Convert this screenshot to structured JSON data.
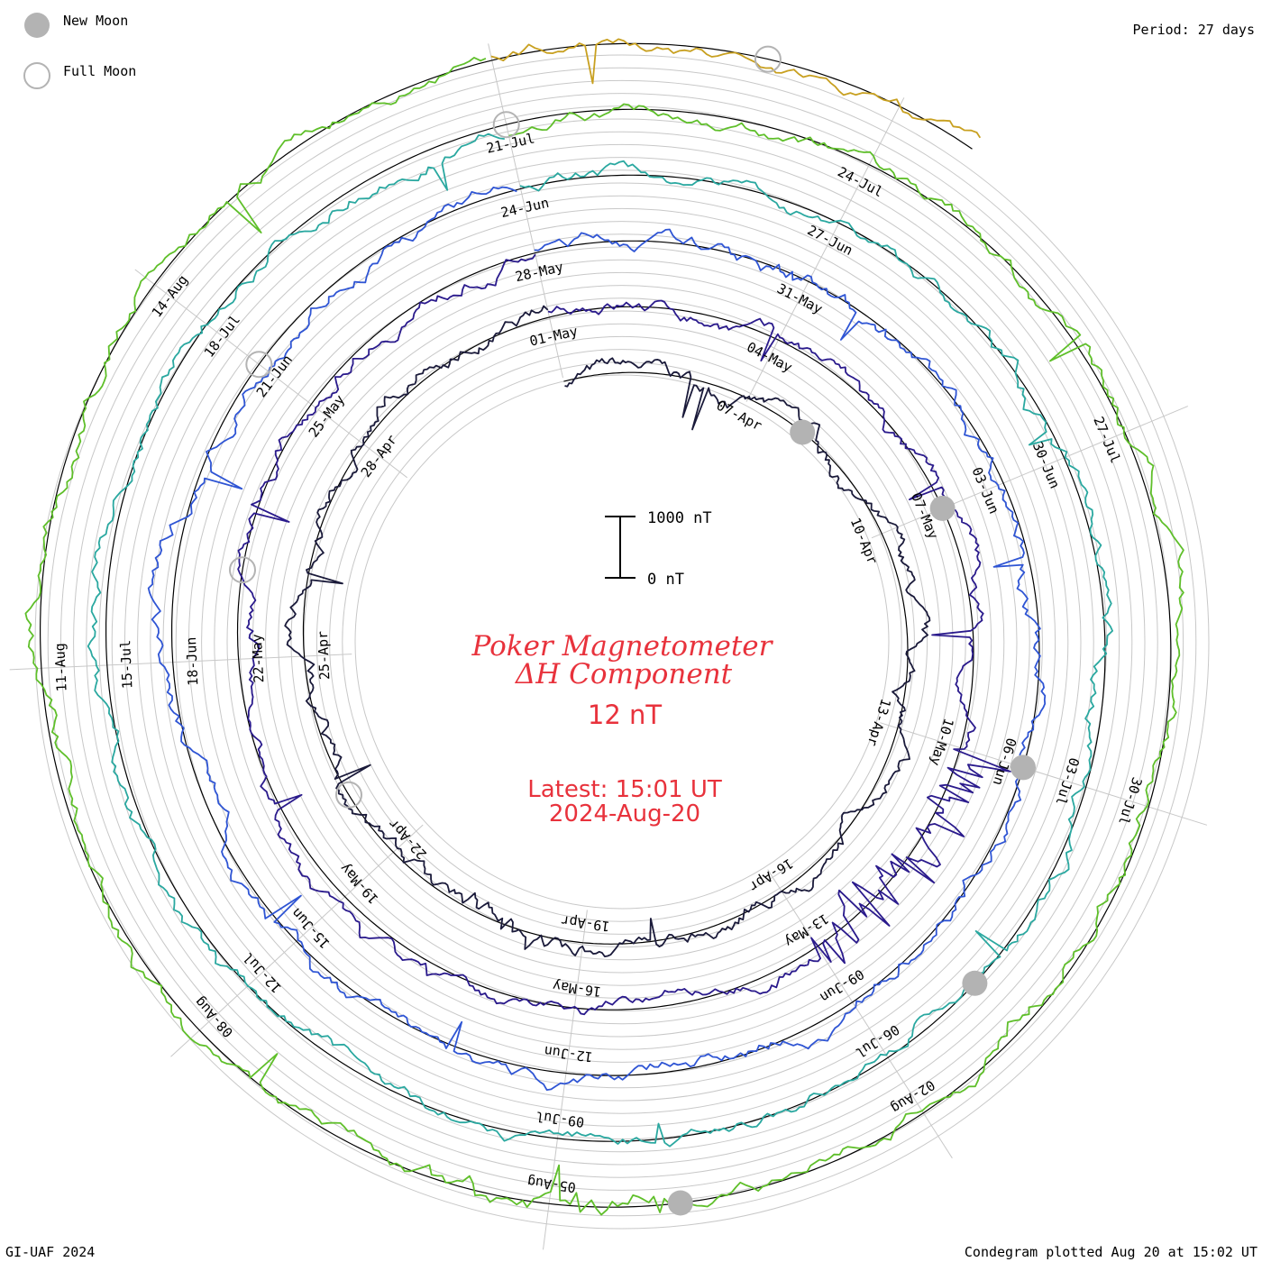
{
  "header": {
    "legend_new_moon": "New Moon",
    "legend_full_moon": "Full Moon",
    "period": "Period: 27 days"
  },
  "footer": {
    "credit": "GI-UAF 2024",
    "plotted": "Condegram plotted Aug 20 at 15:02 UT"
  },
  "center": {
    "title_line1": "Poker Magnetometer",
    "title_line2": "ΔH Component",
    "value": "12 nT",
    "latest": "Latest: 15:01 UT",
    "latest_date": "2024-Aug-20"
  },
  "scale_bar": {
    "top_label": "1000 nT",
    "bottom_label": "0 nT",
    "units_nT": 1000
  },
  "colors": {
    "moon_fill": "#b3b3b3",
    "title": "#e8323c",
    "grid": "#c8c8c8",
    "baseline": "#000000"
  },
  "chart_data": {
    "type": "line",
    "title": "Poker Magnetometer ΔH Component",
    "period_days": 27,
    "start_date": "2024-04-04",
    "end_date": "2024-08-20",
    "date_labels": [
      "07-Apr",
      "10-Apr",
      "13-Apr",
      "16-Apr",
      "19-Apr",
      "22-Apr",
      "25-Apr",
      "28-Apr",
      "01-May",
      "04-May",
      "07-May",
      "10-May",
      "13-May",
      "16-May",
      "19-May",
      "22-May",
      "25-May",
      "28-May",
      "31-May",
      "03-Jun",
      "06-Jun",
      "09-Jun",
      "12-Jun",
      "15-Jun",
      "18-Jun",
      "21-Jun",
      "24-Jun",
      "27-Jun",
      "30-Jun",
      "03-Jul",
      "06-Jul",
      "09-Jul",
      "12-Jul",
      "15-Jul",
      "18-Jul",
      "21-Jul",
      "24-Jul",
      "27-Jul",
      "30-Jul",
      "02-Aug",
      "05-Aug",
      "08-Aug",
      "11-Aug",
      "14-Aug"
    ],
    "series_colors": [
      "#1a1a3a",
      "#2a1a8c",
      "#2f55d4",
      "#2aa8a0",
      "#5fbf2a",
      "#c8a020",
      "#c86a10",
      "#c01818"
    ],
    "new_moons": [
      "2024-04-08",
      "2024-05-07",
      "2024-06-06",
      "2024-07-05",
      "2024-08-04"
    ],
    "full_moons": [
      "2024-04-23",
      "2024-05-23",
      "2024-06-21",
      "2024-07-21",
      "2024-08-19"
    ],
    "storms": [
      {
        "date": "2024-05-10",
        "date_end": "2024-05-12",
        "peak_nT": 1200
      },
      {
        "date": "2024-08-04",
        "date_end": "2024-08-05",
        "peak_nT": 420
      },
      {
        "date": "2024-04-19",
        "date_end": "2024-04-20",
        "peak_nT": 200
      },
      {
        "date": "2024-05-30",
        "date_end": "2024-05-31",
        "peak_nT": 180
      }
    ]
  }
}
